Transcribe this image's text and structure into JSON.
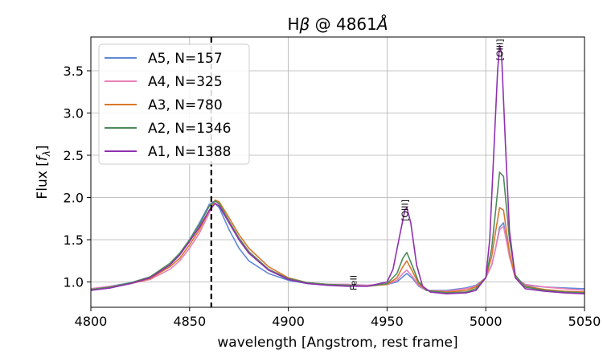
{
  "chart_data": {
    "type": "line",
    "title_prefix": "H",
    "title_beta": "β",
    "title_mid": " @ 4861",
    "title_unit": "Å",
    "xlabel": "wavelength [Angstrom, rest frame]",
    "ylabel_prefix": "Flux [",
    "ylabel_f": "f",
    "ylabel_sub": "λ",
    "ylabel_suffix": "]",
    "xlim": [
      4800,
      5050
    ],
    "ylim": [
      0.7,
      3.9
    ],
    "xticks": [
      4800,
      4850,
      4900,
      4950,
      5000,
      5050
    ],
    "yticks": [
      1.0,
      1.5,
      2.0,
      2.5,
      3.0,
      3.5
    ],
    "xtick_labels": [
      "4800",
      "4850",
      "4900",
      "4950",
      "5000",
      "5050"
    ],
    "ytick_labels": [
      "1.0",
      "1.5",
      "2.0",
      "2.5",
      "3.0",
      "3.5"
    ],
    "grid": true,
    "legend_position": "upper-left",
    "vline": 4861,
    "annotations": [
      {
        "text": "[OIII]",
        "x": 4959,
        "y": 1.72
      },
      {
        "text": "[OIII]",
        "x": 5007,
        "y": 3.62
      },
      {
        "text": "FeII",
        "x": 4933,
        "y": 0.9
      }
    ],
    "series": [
      {
        "name": "A5, N=157",
        "color": "#5f89d8",
        "x": [
          4800,
          4810,
          4820,
          4830,
          4840,
          4845,
          4850,
          4855,
          4860,
          4862,
          4865,
          4870,
          4875,
          4880,
          4890,
          4900,
          4910,
          4920,
          4930,
          4940,
          4950,
          4955,
          4958,
          4960,
          4963,
          4966,
          4970,
          4980,
          4990,
          4995,
          5000,
          5003,
          5005,
          5007,
          5009,
          5012,
          5015,
          5020,
          5030,
          5040,
          5050
        ],
        "y": [
          0.92,
          0.95,
          0.99,
          1.04,
          1.2,
          1.32,
          1.5,
          1.7,
          1.92,
          1.95,
          1.88,
          1.62,
          1.4,
          1.25,
          1.1,
          1.02,
          0.98,
          0.97,
          0.97,
          0.96,
          0.97,
          1.0,
          1.06,
          1.1,
          1.04,
          0.95,
          0.9,
          0.9,
          0.93,
          0.96,
          1.05,
          1.2,
          1.4,
          1.65,
          1.7,
          1.3,
          1.05,
          0.96,
          0.94,
          0.93,
          0.92
        ]
      },
      {
        "name": "A4, N=325",
        "color": "#e97fb8",
        "x": [
          4800,
          4810,
          4820,
          4830,
          4840,
          4845,
          4850,
          4855,
          4860,
          4863,
          4865,
          4870,
          4875,
          4880,
          4890,
          4900,
          4910,
          4920,
          4930,
          4940,
          4950,
          4955,
          4958,
          4960,
          4963,
          4966,
          4970,
          4980,
          4990,
          4995,
          5000,
          5003,
          5005,
          5007,
          5009,
          5012,
          5015,
          5020,
          5030,
          5040,
          5050
        ],
        "y": [
          0.92,
          0.95,
          0.98,
          1.03,
          1.15,
          1.25,
          1.4,
          1.58,
          1.82,
          1.96,
          1.92,
          1.72,
          1.52,
          1.36,
          1.15,
          1.04,
          0.99,
          0.97,
          0.97,
          0.96,
          0.97,
          1.02,
          1.1,
          1.14,
          1.06,
          0.96,
          0.9,
          0.89,
          0.92,
          0.95,
          1.05,
          1.2,
          1.4,
          1.62,
          1.66,
          1.3,
          1.05,
          0.97,
          0.94,
          0.92,
          0.9
        ]
      },
      {
        "name": "A3, N=780",
        "color": "#d9772a",
        "x": [
          4800,
          4810,
          4820,
          4830,
          4840,
          4845,
          4850,
          4855,
          4860,
          4863,
          4865,
          4870,
          4875,
          4880,
          4890,
          4900,
          4910,
          4920,
          4930,
          4940,
          4950,
          4955,
          4958,
          4960,
          4963,
          4966,
          4970,
          4980,
          4990,
          4995,
          5000,
          5003,
          5005,
          5007,
          5009,
          5012,
          5015,
          5020,
          5030,
          5040,
          5050
        ],
        "y": [
          0.91,
          0.94,
          0.98,
          1.04,
          1.18,
          1.28,
          1.44,
          1.62,
          1.85,
          1.97,
          1.95,
          1.76,
          1.56,
          1.4,
          1.18,
          1.05,
          0.99,
          0.97,
          0.96,
          0.95,
          0.97,
          1.05,
          1.18,
          1.25,
          1.12,
          0.98,
          0.9,
          0.88,
          0.9,
          0.94,
          1.05,
          1.3,
          1.6,
          1.88,
          1.85,
          1.35,
          1.05,
          0.95,
          0.91,
          0.89,
          0.88
        ]
      },
      {
        "name": "A2, N=1346",
        "color": "#4f8a5a",
        "x": [
          4800,
          4810,
          4820,
          4830,
          4840,
          4845,
          4850,
          4855,
          4860,
          4863,
          4865,
          4870,
          4875,
          4880,
          4890,
          4900,
          4910,
          4920,
          4930,
          4940,
          4950,
          4955,
          4958,
          4960,
          4963,
          4966,
          4970,
          4980,
          4990,
          4995,
          5000,
          5003,
          5005,
          5007,
          5009,
          5012,
          5015,
          5020,
          5030,
          5040,
          5050
        ],
        "y": [
          0.91,
          0.94,
          0.99,
          1.06,
          1.22,
          1.34,
          1.5,
          1.68,
          1.9,
          1.96,
          1.93,
          1.72,
          1.52,
          1.36,
          1.15,
          1.04,
          0.99,
          0.97,
          0.96,
          0.95,
          0.98,
          1.1,
          1.28,
          1.35,
          1.18,
          1.0,
          0.9,
          0.87,
          0.88,
          0.92,
          1.05,
          1.4,
          1.85,
          2.3,
          2.25,
          1.5,
          1.08,
          0.94,
          0.9,
          0.88,
          0.87
        ]
      },
      {
        "name": "A1, N=1388",
        "color": "#9030b0",
        "x": [
          4800,
          4810,
          4820,
          4830,
          4840,
          4845,
          4850,
          4855,
          4860,
          4863,
          4865,
          4870,
          4875,
          4880,
          4890,
          4900,
          4910,
          4920,
          4930,
          4940,
          4950,
          4953,
          4956,
          4959,
          4960,
          4962,
          4965,
          4968,
          4972,
          4980,
          4990,
          4995,
          5000,
          5002,
          5004,
          5006,
          5007,
          5008,
          5010,
          5012,
          5015,
          5020,
          5030,
          5040,
          5050
        ],
        "y": [
          0.9,
          0.93,
          0.98,
          1.05,
          1.2,
          1.32,
          1.48,
          1.65,
          1.85,
          1.93,
          1.9,
          1.7,
          1.5,
          1.34,
          1.14,
          1.03,
          0.98,
          0.96,
          0.95,
          0.95,
          1.0,
          1.15,
          1.5,
          1.85,
          1.88,
          1.7,
          1.2,
          0.95,
          0.88,
          0.86,
          0.87,
          0.9,
          1.05,
          1.5,
          2.5,
          3.5,
          3.8,
          3.7,
          2.6,
          1.6,
          1.05,
          0.92,
          0.89,
          0.87,
          0.86
        ]
      }
    ]
  }
}
